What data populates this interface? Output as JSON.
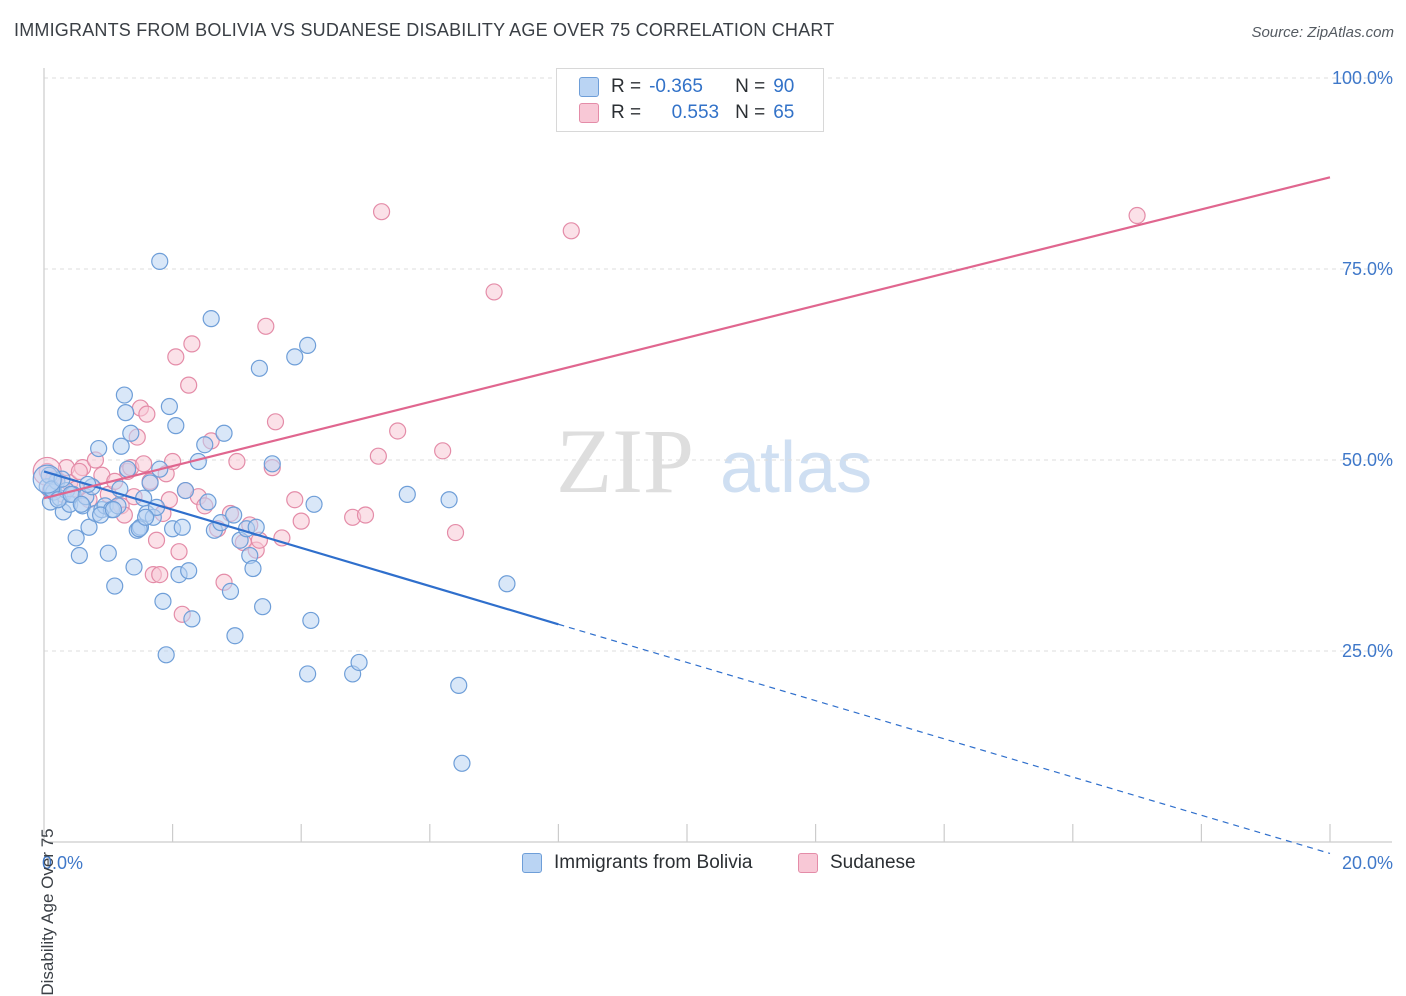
{
  "title": "IMMIGRANTS FROM BOLIVIA VS SUDANESE DISABILITY AGE OVER 75 CORRELATION CHART",
  "source": "Source: ZipAtlas.com",
  "legend": {
    "r1_label": "R =",
    "r1_value": "-0.365",
    "n1_label": "N =",
    "n1_value": "90",
    "r2_label": "R =",
    "r2_value": "0.553",
    "n2_label": "N =",
    "n2_value": "65"
  },
  "watermark": {
    "zip": "ZIP",
    "atlas": "atlas"
  },
  "colors": {
    "blue_fill": "#bad4f3",
    "blue_stroke": "#6e9ed8",
    "blue_line": "#2f6fcc",
    "pink_fill": "#f8c8d6",
    "pink_stroke": "#e48ca8",
    "pink_line": "#e0668f",
    "tick_label": "#3f78c9",
    "grid": "#dcdcdc"
  },
  "chart_data": {
    "type": "scatter",
    "title": "IMMIGRANTS FROM BOLIVIA VS SUDANESE DISABILITY AGE OVER 75 CORRELATION CHART",
    "xlabel": "",
    "ylabel": "Disability Age Over 75",
    "xlim": [
      0,
      20
    ],
    "ylim": [
      0,
      100
    ],
    "x_tick_labels": [
      "0.0%",
      "20.0%"
    ],
    "y_tick_labels": [
      "100.0%",
      "75.0%",
      "50.0%",
      "25.0%"
    ],
    "y_ticks": [
      100,
      75,
      50,
      25
    ],
    "grid": true,
    "legend_position": "top-center",
    "series": [
      {
        "name": "Immigrants from Bolivia",
        "color": "#6e9ed8",
        "r": -0.365,
        "n": 90,
        "trend": {
          "x0": 0,
          "y0": 48.5,
          "x1": 8.0,
          "y1": 28.5,
          "dash_to_x": 20.0,
          "dash_to_y": -1.5
        },
        "points": [
          [
            0.05,
            46.5
          ],
          [
            0.1,
            44.5
          ],
          [
            0.15,
            45.8
          ],
          [
            0.2,
            47.2
          ],
          [
            0.25,
            45.0
          ],
          [
            0.3,
            43.2
          ],
          [
            0.35,
            46.0
          ],
          [
            0.4,
            44.2
          ],
          [
            0.45,
            45.5
          ],
          [
            0.5,
            39.8
          ],
          [
            0.55,
            37.5
          ],
          [
            0.6,
            44.0
          ],
          [
            0.65,
            45.2
          ],
          [
            0.7,
            41.2
          ],
          [
            0.75,
            46.5
          ],
          [
            0.8,
            43.0
          ],
          [
            0.85,
            51.5
          ],
          [
            0.9,
            43.5
          ],
          [
            0.95,
            44.0
          ],
          [
            1.0,
            37.8
          ],
          [
            1.05,
            43.5
          ],
          [
            1.1,
            33.5
          ],
          [
            1.15,
            44.0
          ],
          [
            1.2,
            51.8
          ],
          [
            1.25,
            58.5
          ],
          [
            1.27,
            56.2
          ],
          [
            1.3,
            48.8
          ],
          [
            1.35,
            53.5
          ],
          [
            1.4,
            36.0
          ],
          [
            1.45,
            40.8
          ],
          [
            1.5,
            41.2
          ],
          [
            1.55,
            45.0
          ],
          [
            1.6,
            43.0
          ],
          [
            1.65,
            47.0
          ],
          [
            1.7,
            42.5
          ],
          [
            1.75,
            43.8
          ],
          [
            1.8,
            48.8
          ],
          [
            1.85,
            31.5
          ],
          [
            1.9,
            24.5
          ],
          [
            1.95,
            57.0
          ],
          [
            1.8,
            76.0
          ],
          [
            2.0,
            41.0
          ],
          [
            2.05,
            54.5
          ],
          [
            2.1,
            35.0
          ],
          [
            2.15,
            41.2
          ],
          [
            2.2,
            46.0
          ],
          [
            2.25,
            35.5
          ],
          [
            2.3,
            29.2
          ],
          [
            2.4,
            49.8
          ],
          [
            2.5,
            52.0
          ],
          [
            2.6,
            68.5
          ],
          [
            2.55,
            44.5
          ],
          [
            2.65,
            40.8
          ],
          [
            2.75,
            41.8
          ],
          [
            2.8,
            53.5
          ],
          [
            2.9,
            32.8
          ],
          [
            2.95,
            42.8
          ],
          [
            2.97,
            27.0
          ],
          [
            3.05,
            39.5
          ],
          [
            3.15,
            41.0
          ],
          [
            3.2,
            37.5
          ],
          [
            3.25,
            35.8
          ],
          [
            3.3,
            41.2
          ],
          [
            3.35,
            62.0
          ],
          [
            3.4,
            30.8
          ],
          [
            3.55,
            49.5
          ],
          [
            3.9,
            63.5
          ],
          [
            4.1,
            65.0
          ],
          [
            4.1,
            22.0
          ],
          [
            4.15,
            29.0
          ],
          [
            4.2,
            44.2
          ],
          [
            4.8,
            22.0
          ],
          [
            4.9,
            23.5
          ],
          [
            5.65,
            45.5
          ],
          [
            6.3,
            44.8
          ],
          [
            6.45,
            20.5
          ],
          [
            6.5,
            10.3
          ],
          [
            7.2,
            33.8
          ],
          [
            0.08,
            48.0
          ],
          [
            0.12,
            46.2
          ],
          [
            0.22,
            44.8
          ],
          [
            0.28,
            47.5
          ],
          [
            0.42,
            45.5
          ],
          [
            0.58,
            44.2
          ],
          [
            0.68,
            46.8
          ],
          [
            0.88,
            42.8
          ],
          [
            1.08,
            43.5
          ],
          [
            1.18,
            46.2
          ],
          [
            1.48,
            41.0
          ],
          [
            1.58,
            42.5
          ]
        ]
      },
      {
        "name": "Sudanese",
        "color": "#e48ca8",
        "r": 0.553,
        "n": 65,
        "trend": {
          "x0": 0,
          "y0": 45.0,
          "x1": 20.0,
          "y1": 87.0
        },
        "points": [
          [
            0.05,
            48.5
          ],
          [
            0.1,
            46.0
          ],
          [
            0.2,
            47.5
          ],
          [
            0.3,
            45.5
          ],
          [
            0.4,
            47.0
          ],
          [
            0.5,
            46.2
          ],
          [
            0.6,
            49.0
          ],
          [
            0.7,
            44.8
          ],
          [
            0.8,
            50.0
          ],
          [
            0.9,
            48.0
          ],
          [
            1.0,
            45.5
          ],
          [
            1.1,
            47.2
          ],
          [
            1.2,
            44.0
          ],
          [
            1.25,
            42.8
          ],
          [
            1.3,
            48.5
          ],
          [
            1.35,
            49.0
          ],
          [
            1.4,
            45.2
          ],
          [
            1.45,
            53.0
          ],
          [
            1.5,
            56.8
          ],
          [
            1.55,
            49.5
          ],
          [
            1.6,
            56.0
          ],
          [
            1.65,
            47.2
          ],
          [
            1.7,
            35.0
          ],
          [
            1.75,
            39.5
          ],
          [
            1.8,
            35.0
          ],
          [
            1.85,
            43.0
          ],
          [
            1.9,
            48.2
          ],
          [
            1.95,
            44.8
          ],
          [
            2.0,
            49.8
          ],
          [
            2.05,
            63.5
          ],
          [
            2.1,
            38.0
          ],
          [
            2.15,
            29.8
          ],
          [
            2.2,
            46.0
          ],
          [
            2.25,
            59.8
          ],
          [
            2.3,
            65.2
          ],
          [
            2.4,
            45.2
          ],
          [
            2.5,
            44.0
          ],
          [
            2.6,
            52.5
          ],
          [
            2.7,
            41.0
          ],
          [
            2.8,
            34.0
          ],
          [
            2.9,
            43.0
          ],
          [
            3.0,
            49.8
          ],
          [
            3.1,
            39.2
          ],
          [
            3.2,
            41.5
          ],
          [
            3.3,
            38.2
          ],
          [
            3.35,
            39.5
          ],
          [
            3.45,
            67.5
          ],
          [
            3.55,
            49.0
          ],
          [
            3.7,
            39.8
          ],
          [
            3.6,
            55.0
          ],
          [
            3.9,
            44.8
          ],
          [
            4.0,
            42.0
          ],
          [
            4.8,
            42.5
          ],
          [
            5.0,
            42.8
          ],
          [
            5.2,
            50.5
          ],
          [
            5.25,
            82.5
          ],
          [
            5.5,
            53.8
          ],
          [
            6.2,
            51.2
          ],
          [
            6.4,
            40.5
          ],
          [
            7.0,
            72.0
          ],
          [
            8.2,
            80.0
          ],
          [
            17.0,
            82.0
          ],
          [
            0.15,
            47.5
          ],
          [
            0.35,
            49.0
          ],
          [
            0.55,
            48.5
          ]
        ]
      }
    ]
  }
}
